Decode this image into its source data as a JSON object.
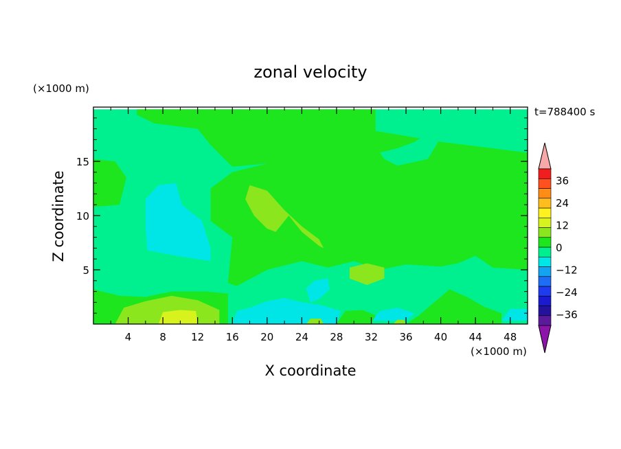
{
  "chart_data": {
    "type": "heatmap",
    "title": "zonal velocity",
    "xlabel": "X coordinate",
    "ylabel": "Z coordinate",
    "x_unit": "(×1000 m)",
    "y_unit": "(×1000 m)",
    "time_label": "t=788400 s",
    "xlim": [
      0,
      50
    ],
    "ylim": [
      0,
      20
    ],
    "x_ticks": [
      4,
      8,
      12,
      16,
      20,
      24,
      28,
      32,
      36,
      40,
      44,
      48
    ],
    "y_ticks": [
      5,
      10,
      15
    ],
    "colorbar": {
      "ticks": [
        36,
        24,
        12,
        0,
        -12,
        -24,
        -36
      ],
      "levels": [
        -42,
        -36,
        -30,
        -24,
        -18,
        -12,
        -6,
        0,
        6,
        12,
        18,
        24,
        30,
        36,
        42
      ],
      "colors": [
        "#5a1a99",
        "#24129c",
        "#1a1ad0",
        "#1e3bf0",
        "#1e6df5",
        "#12a4f0",
        "#00e6e6",
        "#00f090",
        "#1ee61e",
        "#8ce61e",
        "#d8f21e",
        "#fff21e",
        "#ffbe1e",
        "#ff8c14",
        "#ff501e",
        "#f01e1e"
      ],
      "over_color": "#f7a8a8",
      "under_color": "#8c14a8"
    },
    "regions": [
      {
        "name": "background",
        "level": -6,
        "polygon": [
          [
            0,
            0
          ],
          [
            50,
            0
          ],
          [
            50,
            19.8
          ],
          [
            0,
            19.8
          ]
        ]
      },
      {
        "name": "upper-green",
        "level": 0,
        "polygon": [
          [
            5,
            19.8
          ],
          [
            32.5,
            19.8
          ],
          [
            32.5,
            17.8
          ],
          [
            30,
            17
          ],
          [
            26,
            15.5
          ],
          [
            24,
            15
          ],
          [
            20,
            14.8
          ],
          [
            16,
            14.5
          ],
          [
            13.5,
            16.5
          ],
          [
            12,
            18
          ],
          [
            7,
            18.5
          ],
          [
            5,
            19.3
          ]
        ]
      },
      {
        "name": "right-green",
        "level": 0,
        "polygon": [
          [
            32.5,
            17.8
          ],
          [
            40,
            16.8
          ],
          [
            48,
            16
          ],
          [
            50,
            15.8
          ],
          [
            50,
            5
          ],
          [
            46,
            5.2
          ],
          [
            44,
            6.3
          ],
          [
            42,
            5.6
          ],
          [
            40,
            5.3
          ],
          [
            36,
            5.5
          ],
          [
            33,
            5
          ],
          [
            30,
            5.8
          ],
          [
            27,
            5.2
          ],
          [
            24,
            5.8
          ],
          [
            20,
            5
          ],
          [
            16.5,
            3.5
          ],
          [
            15.5,
            3.8
          ],
          [
            16,
            8
          ],
          [
            13.5,
            9.5
          ],
          [
            13.5,
            12.5
          ],
          [
            16,
            14
          ],
          [
            20,
            14.8
          ],
          [
            26,
            15.5
          ],
          [
            30,
            17
          ]
        ]
      },
      {
        "name": "right-upper-teal",
        "level": -6,
        "polygon": [
          [
            39,
            17.8
          ],
          [
            40,
            17.3
          ],
          [
            39.5,
            16.5
          ],
          [
            38.5,
            15.2
          ],
          [
            35,
            14.6
          ],
          [
            33.5,
            15.2
          ],
          [
            33,
            15.8
          ],
          [
            35,
            16.2
          ],
          [
            37,
            16.8
          ]
        ]
      },
      {
        "name": "left-upper-green",
        "level": 0,
        "polygon": [
          [
            0,
            15.2
          ],
          [
            2.5,
            15
          ],
          [
            3.8,
            13.5
          ],
          [
            3,
            11
          ],
          [
            0,
            10.8
          ]
        ]
      },
      {
        "name": "central-lime-arc",
        "level": 6,
        "polygon": [
          [
            18,
            12.8
          ],
          [
            20,
            12.3
          ],
          [
            22,
            10.5
          ],
          [
            24,
            9
          ],
          [
            26,
            7.8
          ],
          [
            26.5,
            7
          ],
          [
            26,
            7.2
          ],
          [
            24,
            8.5
          ],
          [
            22.5,
            10
          ],
          [
            21,
            8.5
          ],
          [
            20,
            8.8
          ],
          [
            18.5,
            10
          ],
          [
            17.5,
            11.5
          ]
        ]
      },
      {
        "name": "lime-blob",
        "level": 6,
        "polygon": [
          [
            29.5,
            4.2
          ],
          [
            31.5,
            3.6
          ],
          [
            33.5,
            4.2
          ],
          [
            33.5,
            5.2
          ],
          [
            31.5,
            5.6
          ],
          [
            29.5,
            5.2
          ]
        ]
      },
      {
        "name": "cyan-left",
        "level": -12,
        "polygon": [
          [
            6,
            9
          ],
          [
            6,
            11.5
          ],
          [
            7.5,
            12.8
          ],
          [
            9.5,
            13
          ],
          [
            10.2,
            11
          ],
          [
            12.5,
            9.5
          ],
          [
            13.5,
            7
          ],
          [
            13.5,
            5.8
          ],
          [
            9.5,
            6.3
          ],
          [
            6.2,
            6.8
          ]
        ]
      },
      {
        "name": "cyan-mid",
        "level": -12,
        "polygon": [
          [
            24.5,
            3.3
          ],
          [
            25.5,
            4
          ],
          [
            27,
            4.2
          ],
          [
            27.2,
            3.2
          ],
          [
            26,
            2.3
          ],
          [
            25,
            2
          ]
        ]
      },
      {
        "name": "cyan-bottom",
        "level": -12,
        "polygon": [
          [
            16,
            0
          ],
          [
            28,
            0
          ],
          [
            28.5,
            1.2
          ],
          [
            26,
            1.8
          ],
          [
            24,
            2
          ],
          [
            22,
            2.4
          ],
          [
            20,
            2.1
          ],
          [
            18,
            1.5
          ],
          [
            16.5,
            1.2
          ]
        ]
      },
      {
        "name": "cyan-right-bottom",
        "level": -12,
        "polygon": [
          [
            32,
            0.3
          ],
          [
            36,
            0.3
          ],
          [
            37,
            1
          ],
          [
            35,
            1.5
          ],
          [
            33,
            1.2
          ]
        ]
      },
      {
        "name": "cyan-right-edge",
        "level": -12,
        "polygon": [
          [
            47,
            0.3
          ],
          [
            50,
            0.3
          ],
          [
            50,
            1.4
          ],
          [
            48,
            1.4
          ]
        ]
      },
      {
        "name": "green-bottom-left",
        "level": 0,
        "polygon": [
          [
            0,
            0
          ],
          [
            15.5,
            0
          ],
          [
            15.5,
            2.8
          ],
          [
            13,
            3
          ],
          [
            9,
            3
          ],
          [
            6,
            2.5
          ],
          [
            3,
            2.6
          ],
          [
            0,
            3.2
          ]
        ]
      },
      {
        "name": "lime-bottom",
        "level": 6,
        "polygon": [
          [
            2.5,
            0
          ],
          [
            14.5,
            0
          ],
          [
            14.5,
            1.3
          ],
          [
            12,
            2.2
          ],
          [
            9,
            2.6
          ],
          [
            6,
            2.1
          ],
          [
            3.5,
            1.5
          ]
        ]
      },
      {
        "name": "yellow-bottom",
        "level": 12,
        "polygon": [
          [
            7.5,
            0
          ],
          [
            12,
            0
          ],
          [
            11.8,
            1.2
          ],
          [
            10,
            1.3
          ],
          [
            8,
            1.1
          ]
        ]
      },
      {
        "name": "green-bottom-mid",
        "level": 0,
        "polygon": [
          [
            28,
            0
          ],
          [
            32,
            0
          ],
          [
            32.5,
            0.8
          ],
          [
            31,
            1.3
          ],
          [
            29,
            1.2
          ]
        ]
      },
      {
        "name": "green-bottom-right",
        "level": 0,
        "polygon": [
          [
            36,
            0
          ],
          [
            47,
            0
          ],
          [
            47,
            1
          ],
          [
            45,
            1.6
          ],
          [
            43,
            2.5
          ],
          [
            41,
            3.2
          ],
          [
            40,
            2.5
          ],
          [
            38.5,
            1.5
          ],
          [
            37.5,
            0.8
          ]
        ]
      },
      {
        "name": "lime-spot",
        "level": 6,
        "polygon": [
          [
            34.5,
            0
          ],
          [
            36,
            0
          ],
          [
            35.8,
            0.4
          ],
          [
            35,
            0.4
          ]
        ]
      },
      {
        "name": "lime-spot-2",
        "level": 6,
        "polygon": [
          [
            24.5,
            0
          ],
          [
            26.5,
            0
          ],
          [
            26.2,
            0.5
          ],
          [
            25,
            0.5
          ]
        ]
      }
    ]
  }
}
